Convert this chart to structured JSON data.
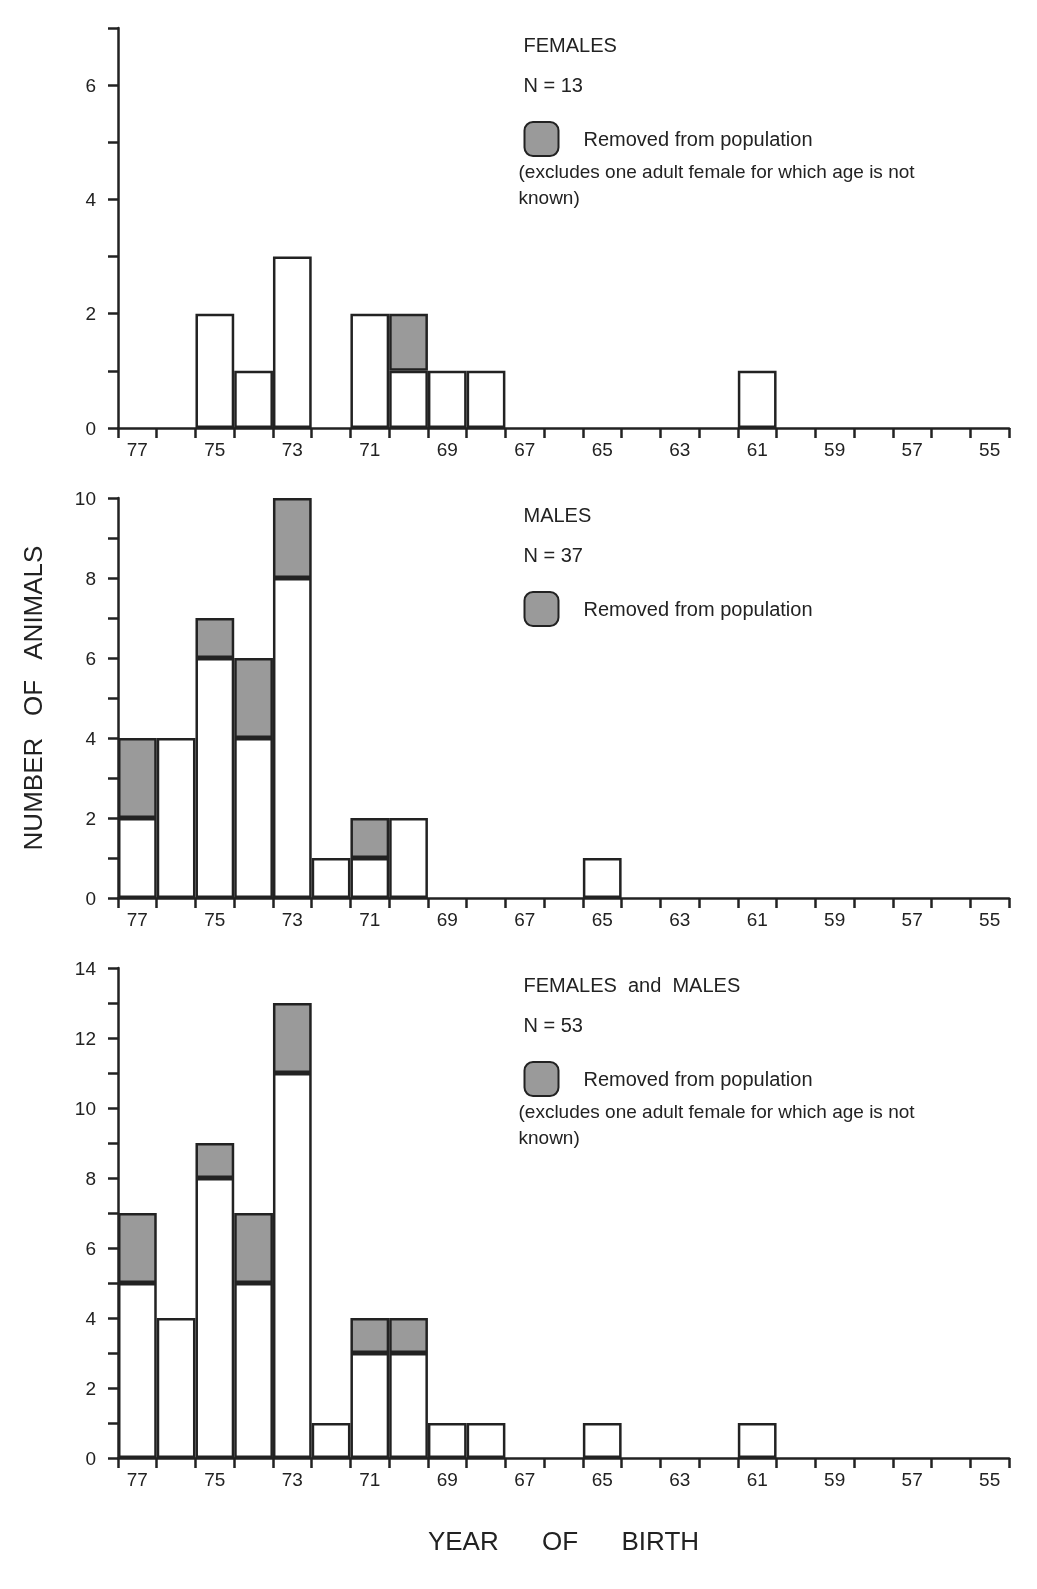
{
  "chart_data": [
    {
      "type": "bar",
      "stacked": true,
      "title": "FEMALES",
      "subtitle": "N = 13",
      "annotations": [
        "(excludes one adult female for which age is not known)"
      ],
      "legend": "top right",
      "categories": [
        "77",
        null,
        "75",
        null,
        "73",
        null,
        "71",
        null,
        "69",
        null,
        "67",
        null,
        "65",
        null,
        "63",
        null,
        "61",
        null,
        "59",
        null,
        "57",
        null,
        "55"
      ],
      "series": [
        {
          "color": "#ffffff",
          "values": [
            0,
            0,
            2,
            1,
            3,
            0,
            2,
            1,
            1,
            1,
            0,
            0,
            0,
            0,
            0,
            0,
            1,
            0,
            0,
            0,
            0,
            0,
            0
          ]
        },
        {
          "name": "Removed from population",
          "color": "#9a9a9a",
          "values": [
            0,
            0,
            0,
            0,
            0,
            0,
            0,
            1,
            0,
            0,
            0,
            0,
            0,
            0,
            0,
            0,
            0,
            0,
            0,
            0,
            0,
            0,
            0
          ]
        }
      ],
      "ylim": [
        0,
        7
      ],
      "yticks": [
        0,
        {
          "value": 1,
          "label": null
        },
        2,
        {
          "value": 3,
          "label": null
        },
        4,
        {
          "value": 5,
          "label": null
        },
        6,
        {
          "value": 7,
          "label": null
        }
      ],
      "grid": false
    },
    {
      "type": "bar",
      "stacked": true,
      "title": "MALES",
      "subtitle": "N = 37",
      "ylabel": "NUMBER   OF   ANIMALS",
      "legend": "top right",
      "categories": [
        "77",
        null,
        "75",
        null,
        "73",
        null,
        "71",
        null,
        "69",
        null,
        "67",
        null,
        "65",
        null,
        "63",
        null,
        "61",
        null,
        "59",
        null,
        "57",
        null,
        "55"
      ],
      "series": [
        {
          "color": "#ffffff",
          "values": [
            2,
            4,
            6,
            4,
            8,
            1,
            1,
            2,
            0,
            0,
            0,
            0,
            1,
            0,
            0,
            0,
            0,
            0,
            0,
            0,
            0,
            0,
            0
          ]
        },
        {
          "name": "Removed from population",
          "color": "#9a9a9a",
          "values": [
            2,
            0,
            1,
            2,
            2,
            0,
            1,
            0,
            0,
            0,
            0,
            0,
            0,
            0,
            0,
            0,
            0,
            0,
            0,
            0,
            0,
            0,
            0
          ]
        }
      ],
      "ylim": [
        0,
        10
      ],
      "yticks": [
        0,
        {
          "value": 1,
          "label": null
        },
        2,
        {
          "value": 3,
          "label": null
        },
        4,
        {
          "value": 5,
          "label": null
        },
        6,
        {
          "value": 7,
          "label": null
        },
        8,
        {
          "value": 9,
          "label": null
        },
        10
      ],
      "grid": false
    },
    {
      "type": "bar",
      "stacked": true,
      "title": "FEMALES  and  MALES",
      "subtitle": "N = 53",
      "xlabel": "YEAR      OF      BIRTH",
      "annotations": [
        "(excludes one adult female for which age is not known)"
      ],
      "legend": "top right",
      "categories": [
        "77",
        null,
        "75",
        null,
        "73",
        null,
        "71",
        null,
        "69",
        null,
        "67",
        null,
        "65",
        null,
        "63",
        null,
        "61",
        null,
        "59",
        null,
        "57",
        null,
        "55"
      ],
      "series": [
        {
          "color": "#ffffff",
          "values": [
            5,
            4,
            8,
            5,
            11,
            1,
            3,
            3,
            1,
            1,
            0,
            0,
            1,
            0,
            0,
            0,
            1,
            0,
            0,
            0,
            0,
            0,
            0
          ]
        },
        {
          "name": "Removed from population",
          "color": "#9a9a9a",
          "values": [
            2,
            0,
            1,
            2,
            2,
            0,
            1,
            1,
            0,
            0,
            0,
            0,
            0,
            0,
            0,
            0,
            0,
            0,
            0,
            0,
            0,
            0,
            0
          ]
        }
      ],
      "ylim": [
        0,
        14
      ],
      "yticks": [
        0,
        {
          "value": 1,
          "label": null
        },
        2,
        {
          "value": 3,
          "label": null
        },
        4,
        {
          "value": 5,
          "label": null
        },
        6,
        {
          "value": 7,
          "label": null
        },
        8,
        {
          "value": 9,
          "label": null
        },
        10,
        {
          "value": 11,
          "label": null
        },
        12,
        {
          "value": 13,
          "label": null
        },
        14
      ],
      "grid": false
    }
  ]
}
